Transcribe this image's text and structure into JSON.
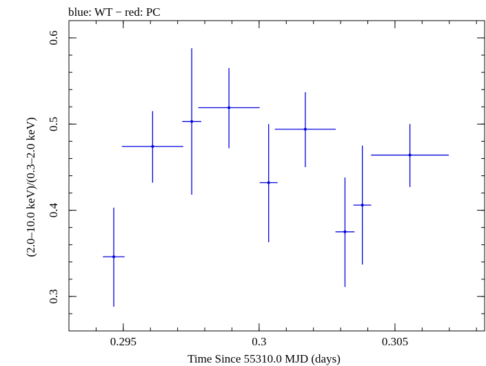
{
  "chart_data": {
    "type": "scatter",
    "title": "blue: WT − red: PC",
    "xlabel": "Time Since 55310.0 MJD (days)",
    "ylabel": "(2.0–10.0 keV)/(0.3–2.0 keV)",
    "xlim": [
      0.293,
      0.3083
    ],
    "ylim": [
      0.26,
      0.62
    ],
    "x_ticks": [
      {
        "value": 0.295,
        "label": "0.295"
      },
      {
        "value": 0.3,
        "label": "0.3"
      },
      {
        "value": 0.305,
        "label": "0.305"
      }
    ],
    "y_ticks": [
      {
        "value": 0.3,
        "label": "0.3"
      },
      {
        "value": 0.4,
        "label": "0.4"
      },
      {
        "value": 0.5,
        "label": "0.5"
      },
      {
        "value": 0.6,
        "label": "0.6"
      }
    ],
    "x_minor_step": 0.001,
    "y_minor_step": 0.02,
    "grid": false,
    "series": [
      {
        "color": "#0000dd",
        "points": [
          {
            "x": 0.29465,
            "y": 0.346,
            "xerr": 0.0004,
            "ylo": 0.288,
            "yhi": 0.403
          },
          {
            "x": 0.29608,
            "y": 0.474,
            "xerr": 0.00113,
            "ylo": 0.432,
            "yhi": 0.515
          },
          {
            "x": 0.29752,
            "y": 0.503,
            "xerr": 0.00035,
            "ylo": 0.418,
            "yhi": 0.588
          },
          {
            "x": 0.29889,
            "y": 0.519,
            "xerr": 0.00113,
            "ylo": 0.472,
            "yhi": 0.565
          },
          {
            "x": 0.30035,
            "y": 0.432,
            "xerr": 0.00033,
            "ylo": 0.363,
            "yhi": 0.5
          },
          {
            "x": 0.3017,
            "y": 0.494,
            "xerr": 0.00112,
            "ylo": 0.45,
            "yhi": 0.537
          },
          {
            "x": 0.30316,
            "y": 0.375,
            "xerr": 0.00035,
            "ylo": 0.311,
            "yhi": 0.438
          },
          {
            "x": 0.3038,
            "y": 0.406,
            "xerr": 0.00033,
            "ylo": 0.337,
            "yhi": 0.475
          },
          {
            "x": 0.30555,
            "y": 0.464,
            "xerr": 0.00143,
            "ylo": 0.427,
            "yhi": 0.5
          }
        ]
      }
    ]
  }
}
